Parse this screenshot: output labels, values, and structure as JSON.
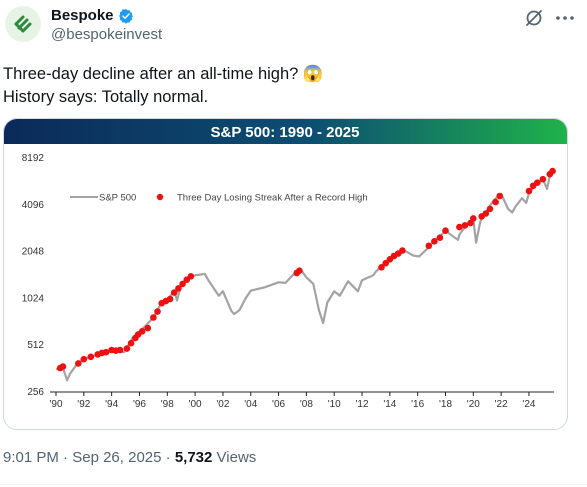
{
  "author": {
    "display_name": "Bespoke",
    "handle": "@bespokeinvest"
  },
  "tweet": {
    "line1": "Three-day decline after an all-time high? 😱",
    "line2": "History says: Totally normal."
  },
  "meta": {
    "time": "9:01 PM",
    "sep": "·",
    "date": "Sep 26, 2025",
    "views_count": "5,732",
    "views_label": "Views"
  },
  "colors": {
    "title_gradient_start": "#0b2a5a",
    "title_gradient_end": "#1fb24a",
    "series_line": "#a3a3a3",
    "streak_dot": "#ee1111",
    "verified": "#1d9bf0"
  },
  "icons": {
    "avatar": "bespoke-logo-icon",
    "verified": "verified-badge-icon",
    "grok": "grok-icon",
    "more": "more-icon"
  },
  "chart_data": {
    "type": "line",
    "title": "S&P 500: 1990 - 2025",
    "y_scale": "log2",
    "ylim": [
      256,
      8192
    ],
    "yticks": [
      256,
      512,
      1024,
      2048,
      4096,
      8192
    ],
    "ytick_labels": [
      "256",
      "512",
      "1024",
      "2048",
      "4096",
      "8192"
    ],
    "xlim": [
      1990,
      2025.8
    ],
    "xticks": [
      1990,
      1992,
      1994,
      1996,
      1998,
      2000,
      2002,
      2004,
      2006,
      2008,
      2010,
      2012,
      2014,
      2016,
      2018,
      2020,
      2022,
      2024
    ],
    "xtick_labels": [
      "'90",
      "'92",
      "'94",
      "'96",
      "'98",
      "'00",
      "'02",
      "'04",
      "'06",
      "'08",
      "'10",
      "'12",
      "'14",
      "'16",
      "'18",
      "'20",
      "'22",
      "'24"
    ],
    "legend": {
      "placement": "top-left",
      "line_label": "S&P 500",
      "dot_label": "Three Day Losing Streak After a Record High"
    },
    "series": [
      {
        "name": "S&P 500",
        "points": [
          [
            1990.0,
            353
          ],
          [
            1990.5,
            360
          ],
          [
            1990.8,
            300
          ],
          [
            1991.0,
            330
          ],
          [
            1991.5,
            380
          ],
          [
            1992.0,
            410
          ],
          [
            1993.0,
            440
          ],
          [
            1994.0,
            465
          ],
          [
            1994.9,
            455
          ],
          [
            1995.5,
            560
          ],
          [
            1996.0,
            620
          ],
          [
            1996.5,
            680
          ],
          [
            1997.0,
            760
          ],
          [
            1997.6,
            950
          ],
          [
            1998.0,
            980
          ],
          [
            1998.5,
            1130
          ],
          [
            1998.7,
            980
          ],
          [
            1999.0,
            1230
          ],
          [
            1999.5,
            1350
          ],
          [
            2000.0,
            1420
          ],
          [
            2000.7,
            1450
          ],
          [
            2001.0,
            1300
          ],
          [
            2001.7,
            1050
          ],
          [
            2002.0,
            1120
          ],
          [
            2002.6,
            840
          ],
          [
            2002.8,
            800
          ],
          [
            2003.2,
            850
          ],
          [
            2003.6,
            1000
          ],
          [
            2004.0,
            1130
          ],
          [
            2005.0,
            1190
          ],
          [
            2006.0,
            1280
          ],
          [
            2006.5,
            1270
          ],
          [
            2007.0,
            1420
          ],
          [
            2007.6,
            1540
          ],
          [
            2008.0,
            1380
          ],
          [
            2008.5,
            1250
          ],
          [
            2008.9,
            850
          ],
          [
            2009.2,
            700
          ],
          [
            2009.5,
            950
          ],
          [
            2010.0,
            1120
          ],
          [
            2010.4,
            1050
          ],
          [
            2011.0,
            1300
          ],
          [
            2011.7,
            1120
          ],
          [
            2012.0,
            1320
          ],
          [
            2012.8,
            1420
          ],
          [
            2013.0,
            1500
          ],
          [
            2013.5,
            1650
          ],
          [
            2014.0,
            1840
          ],
          [
            2014.7,
            1980
          ],
          [
            2015.0,
            2060
          ],
          [
            2015.7,
            1900
          ],
          [
            2016.1,
            1880
          ],
          [
            2016.8,
            2150
          ],
          [
            2017.0,
            2280
          ],
          [
            2017.9,
            2680
          ],
          [
            2018.0,
            2780
          ],
          [
            2018.3,
            2620
          ],
          [
            2018.9,
            2400
          ],
          [
            2019.0,
            2600
          ],
          [
            2019.5,
            2980
          ],
          [
            2020.0,
            3250
          ],
          [
            2020.2,
            2300
          ],
          [
            2020.5,
            3150
          ],
          [
            2021.0,
            3750
          ],
          [
            2021.5,
            4350
          ],
          [
            2022.0,
            4750
          ],
          [
            2022.5,
            3800
          ],
          [
            2022.8,
            3600
          ],
          [
            2023.0,
            3900
          ],
          [
            2023.5,
            4450
          ],
          [
            2023.8,
            4150
          ],
          [
            2024.0,
            4800
          ],
          [
            2024.5,
            5450
          ],
          [
            2025.0,
            5900
          ],
          [
            2025.3,
            5100
          ],
          [
            2025.5,
            6200
          ],
          [
            2025.7,
            6650
          ]
        ]
      },
      {
        "name": "Three Day Losing Streak After a Record High",
        "x": [
          1990.3,
          1990.5,
          1991.6,
          1992.0,
          1992.5,
          1993.0,
          1993.3,
          1993.6,
          1994.0,
          1994.3,
          1994.6,
          1995.1,
          1995.4,
          1995.7,
          1995.9,
          1996.2,
          1996.6,
          1997.0,
          1997.3,
          1997.6,
          1997.9,
          1998.2,
          1998.5,
          1998.8,
          1999.1,
          1999.4,
          1999.7,
          2007.3,
          2007.5,
          2013.4,
          2013.7,
          2014.0,
          2014.3,
          2014.6,
          2014.9,
          2016.8,
          2017.2,
          2017.6,
          2018.0,
          2019.0,
          2019.4,
          2019.8,
          2020.0,
          2020.6,
          2020.9,
          2021.2,
          2021.6,
          2021.9,
          2024.0,
          2024.3,
          2024.6,
          2025.0,
          2025.5,
          2025.7
        ],
        "y": [
          360,
          368,
          385,
          410,
          425,
          440,
          450,
          455,
          470,
          465,
          470,
          480,
          520,
          560,
          590,
          620,
          650,
          760,
          830,
          940,
          970,
          1000,
          1100,
          1170,
          1250,
          1330,
          1400,
          1470,
          1520,
          1600,
          1700,
          1800,
          1890,
          1960,
          2050,
          2200,
          2350,
          2480,
          2750,
          2900,
          2980,
          3080,
          3300,
          3400,
          3550,
          3800,
          4200,
          4600,
          4950,
          5350,
          5600,
          5900,
          6350,
          6650
        ]
      }
    ]
  }
}
